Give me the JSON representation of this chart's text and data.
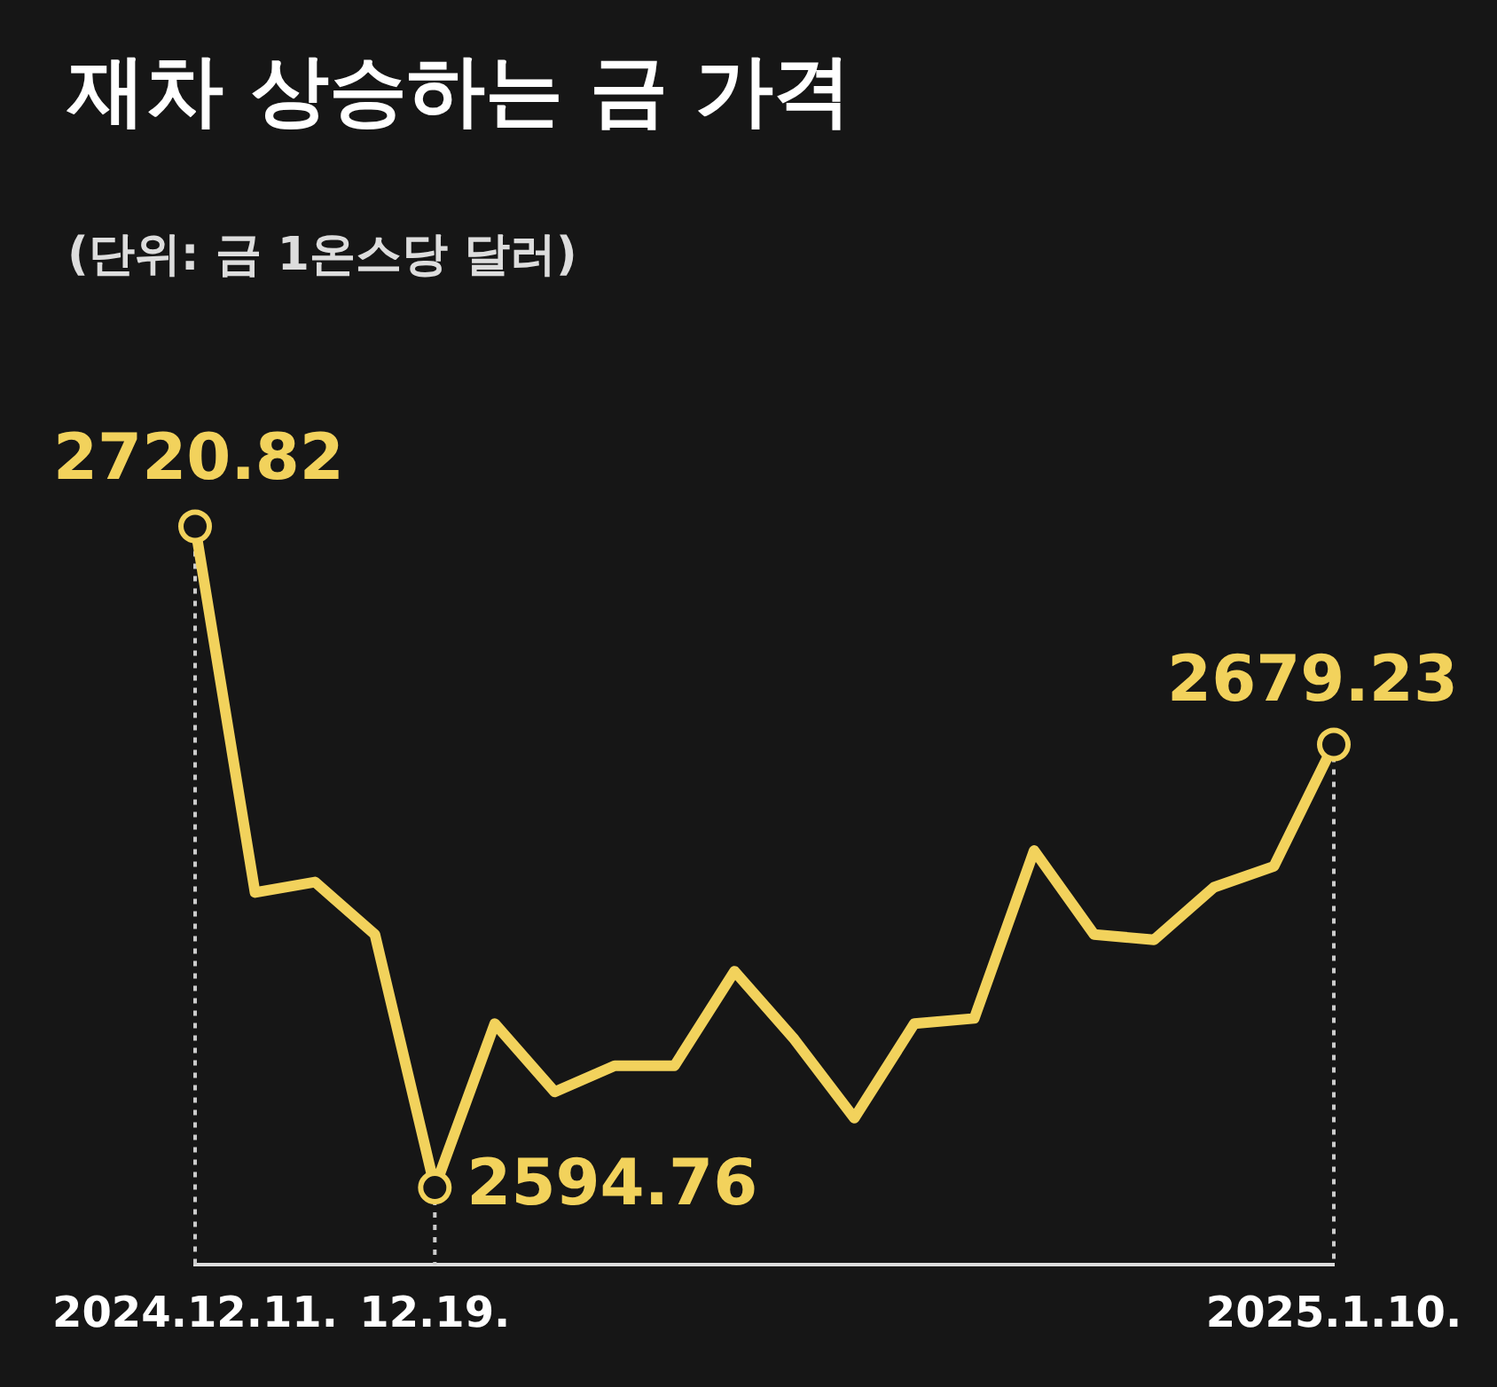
{
  "chart_data": {
    "type": "line",
    "title": "재차 상승하는 금 가격",
    "subtitle": "(단위: 금 1온스당 달러)",
    "categories": [
      "2024.12.11.",
      null,
      null,
      null,
      "12.19.",
      null,
      null,
      null,
      null,
      null,
      null,
      null,
      null,
      null,
      null,
      null,
      null,
      null,
      null,
      "2025.1.10."
    ],
    "series": [
      {
        "color": "#f2d25c",
        "values": [
          2720.82,
          2651,
          2653,
          2643,
          2594.76,
          2626,
          2613,
          2618,
          2618,
          2636,
          2623,
          2608,
          2626,
          2627,
          2659,
          2643,
          2642,
          2652,
          2656,
          2679.23
        ],
        "value_labels": [
          "2720.82",
          null,
          null,
          null,
          "2594.76",
          null,
          null,
          null,
          null,
          null,
          null,
          null,
          null,
          null,
          null,
          null,
          null,
          null,
          null,
          "2679.23"
        ]
      }
    ],
    "grid": "x",
    "legend": false,
    "tick_labels": "x"
  }
}
